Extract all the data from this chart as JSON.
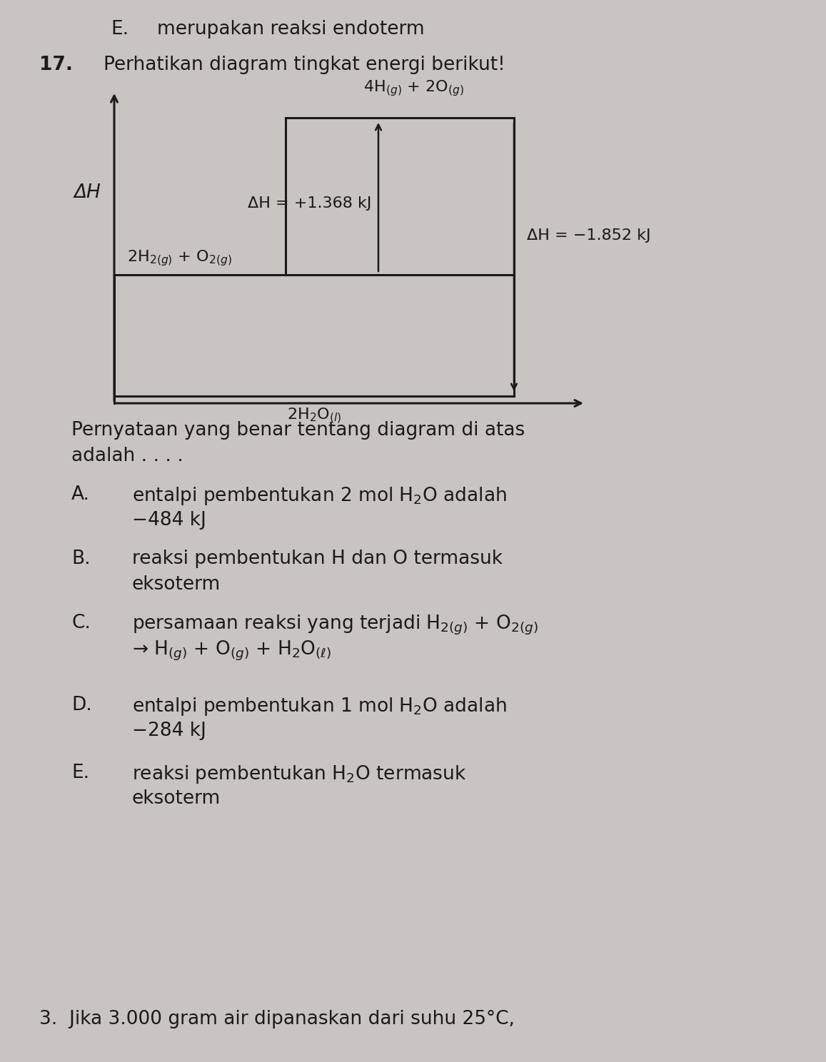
{
  "background_color": "#c8c4c0",
  "page_width": 11.57,
  "page_height": 14.88,
  "text_color": "#1a1a1a",
  "diagram": {
    "y_label": "ΔH",
    "label_high": "4H$_{(g)}$ + 2O$_{(g)}$",
    "label_mid": "2H$_{2(g)}$ + O$_{2(g)}$",
    "label_low": "2H$_2$O$_{(l)}$",
    "dH_up": "ΔH = +1.368 kJ",
    "dH_down": "ΔH = −1.852 kJ"
  },
  "header_E": "E.",
  "header_E_text": "merupakan reaksi endoterm",
  "q17_num": "17.",
  "q17_text": "Perhatikan diagram tingkat energi berikut!",
  "answer_intro_line1": "Pernyataan yang benar tentang diagram di atas",
  "answer_intro_line2": "adalah . . . .",
  "options": [
    {
      "label": "A.",
      "line1": "entalpi pembentukan 2 mol H$_2$O adalah",
      "line2": "−484 kJ"
    },
    {
      "label": "B.",
      "line1": "reaksi pembentukan H dan O termasuk",
      "line2": "eksoterm"
    },
    {
      "label": "C.",
      "line1": "persamaan reaksi yang terjadi H$_{2(g)}$ + O$_{2(g)}$",
      "line2": "→ H$_{(g)}$ + O$_{(g)}$ + H$_2$O$_{(\\ell)}$"
    },
    {
      "label": "D.",
      "line1": "entalpi pembentukan 1 mol H$_2$O adalah",
      "line2": "−284 kJ"
    },
    {
      "label": "E.",
      "line1": "reaksi pembentukan H$_2$O termasuk",
      "line2": "eksoterm"
    }
  ],
  "footer_text": "3.  Jika 3.000 gram air dipanaskan dari suhu 25°C,"
}
